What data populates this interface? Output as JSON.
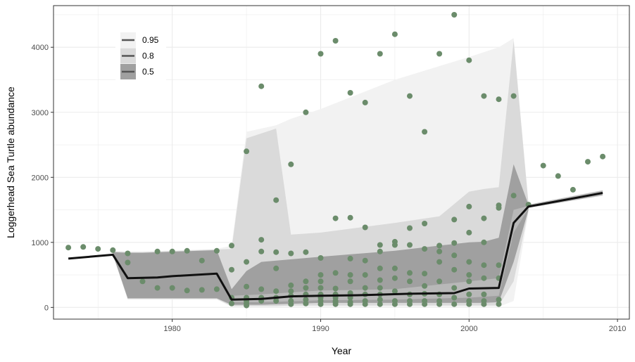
{
  "chart_data": {
    "type": "line",
    "xlabel": "Year",
    "ylabel": "Loggerhead Sea Turtle abundance",
    "xlim": [
      1972.0,
      2010.8
    ],
    "ylim": [
      -180,
      4640
    ],
    "x_ticks": [
      1980,
      1990,
      2000,
      2010
    ],
    "y_ticks": [
      0,
      1000,
      2000,
      3000,
      4000
    ],
    "grid": true,
    "legend": {
      "placement": "top-left",
      "entries": [
        {
          "label": "0.95",
          "color": "#f2f2f2"
        },
        {
          "label": "0.8",
          "color": "#dadada"
        },
        {
          "label": "0.5",
          "color": "#a0a0a0"
        }
      ]
    },
    "colors": {
      "band_95": "#f2f2f2",
      "band_80": "#dadada",
      "band_50": "#a0a0a0",
      "band_inner": "#b8b8b8",
      "median": "#111111",
      "points": "#6b8c6b",
      "grid": "#ebebeb",
      "panel_border": "#333333"
    },
    "bands": [
      {
        "name": "0.95",
        "x": [
          1976,
          1977,
          1978,
          1983,
          1984,
          1985,
          1987,
          1988,
          1990,
          1995,
          2000,
          2002,
          2003,
          2004
        ],
        "lower": [
          800,
          120,
          120,
          120,
          10,
          10,
          10,
          10,
          10,
          10,
          10,
          10,
          100,
          1460
        ],
        "upper": [
          870,
          860,
          860,
          900,
          950,
          2700,
          2800,
          2900,
          3050,
          3500,
          3850,
          4000,
          4140,
          1620
        ]
      },
      {
        "name": "0.8",
        "x": [
          1976,
          1977,
          1978,
          1983,
          1984,
          1985,
          1987,
          1988,
          1990,
          1995,
          1998,
          2000,
          2001,
          2002,
          2003,
          2004
        ],
        "lower": [
          810,
          130,
          130,
          130,
          20,
          20,
          20,
          30,
          30,
          30,
          30,
          30,
          30,
          30,
          400,
          1480
        ],
        "upper": [
          860,
          850,
          850,
          890,
          900,
          2600,
          2750,
          1120,
          1150,
          1300,
          1400,
          1780,
          1820,
          1850,
          4100,
          1600
        ]
      },
      {
        "name": "0.5",
        "x": [
          1976,
          1977,
          1978,
          1983,
          1984,
          1985,
          1986,
          1990,
          1995,
          1998,
          2000,
          2001,
          2002,
          2003,
          2004
        ],
        "lower": [
          820,
          140,
          140,
          140,
          40,
          40,
          40,
          70,
          70,
          70,
          70,
          70,
          80,
          700,
          1500
        ],
        "upper": [
          850,
          840,
          840,
          880,
          280,
          560,
          700,
          780,
          870,
          950,
          1000,
          1010,
          1070,
          2200,
          1580
        ]
      },
      {
        "name": "inner",
        "x": [
          1984,
          1985,
          1986,
          1990,
          1995,
          2000,
          2002,
          2003,
          2004
        ],
        "lower": [
          80,
          80,
          80,
          110,
          120,
          150,
          180,
          1150,
          1520
        ],
        "upper": [
          180,
          190,
          200,
          260,
          280,
          400,
          450,
          1500,
          1560
        ]
      },
      {
        "name": "forecast",
        "x": [
          2004,
          2009
        ],
        "lower": [
          1530,
          1720
        ],
        "upper": [
          1580,
          1800
        ]
      }
    ],
    "median": {
      "x": [
        1973,
        1976,
        1977,
        1979,
        1980,
        1983,
        1984,
        1986,
        1988,
        1990,
        1993,
        1996,
        1999,
        2000,
        2002,
        2003,
        2004,
        2009
      ],
      "y": [
        750,
        810,
        450,
        460,
        480,
        520,
        120,
        130,
        170,
        180,
        190,
        210,
        220,
        290,
        300,
        1300,
        1550,
        1760
      ]
    },
    "points": {
      "x": [
        1973,
        1974,
        1975,
        1976,
        1977,
        1977,
        1978,
        1979,
        1979,
        1980,
        1980,
        1981,
        1981,
        1982,
        1982,
        1983,
        1983,
        1984,
        1984,
        1984,
        1984,
        1985,
        1985,
        1985,
        1985,
        1985,
        1985,
        1985,
        1986,
        1986,
        1986,
        1986,
        1986,
        1986,
        1987,
        1987,
        1987,
        1987,
        1987,
        1987,
        1988,
        1988,
        1988,
        1988,
        1988,
        1988,
        1988,
        1989,
        1989,
        1989,
        1989,
        1989,
        1989,
        1989,
        1990,
        1990,
        1990,
        1990,
        1990,
        1990,
        1990,
        1990,
        1990,
        1991,
        1991,
        1991,
        1991,
        1991,
        1991,
        1991,
        1991,
        1991,
        1992,
        1992,
        1992,
        1992,
        1992,
        1992,
        1992,
        1992,
        1992,
        1993,
        1993,
        1993,
        1993,
        1993,
        1993,
        1993,
        1993,
        1994,
        1994,
        1994,
        1994,
        1994,
        1994,
        1994,
        1994,
        1994,
        1995,
        1995,
        1995,
        1995,
        1995,
        1995,
        1995,
        1995,
        1996,
        1996,
        1996,
        1996,
        1996,
        1996,
        1996,
        1996,
        1997,
        1997,
        1997,
        1997,
        1997,
        1997,
        1997,
        1997,
        1998,
        1998,
        1998,
        1998,
        1998,
        1998,
        1998,
        1998,
        1999,
        1999,
        1999,
        1999,
        1999,
        1999,
        1999,
        1999,
        2000,
        2000,
        2000,
        2000,
        2000,
        2000,
        2000,
        2000,
        2000,
        2001,
        2001,
        2001,
        2001,
        2001,
        2001,
        2001,
        2001,
        2002,
        2002,
        2002,
        2002,
        2002,
        2002,
        2002,
        2003,
        2003,
        2004,
        2005,
        2006,
        2007,
        2008,
        2009
      ],
      "y": [
        920,
        930,
        900,
        880,
        830,
        690,
        400,
        860,
        300,
        860,
        300,
        870,
        260,
        720,
        270,
        870,
        280,
        950,
        580,
        150,
        60,
        2400,
        700,
        320,
        150,
        100,
        60,
        30,
        3400,
        1040,
        860,
        280,
        150,
        100,
        1650,
        850,
        600,
        250,
        150,
        100,
        2200,
        830,
        340,
        250,
        180,
        100,
        50,
        3000,
        850,
        400,
        300,
        200,
        120,
        60,
        3900,
        760,
        500,
        400,
        300,
        200,
        150,
        100,
        50,
        4100,
        1370,
        530,
        290,
        200,
        150,
        100,
        80,
        50,
        3300,
        1380,
        750,
        500,
        400,
        220,
        150,
        80,
        50,
        3150,
        1230,
        720,
        500,
        300,
        200,
        100,
        50,
        3900,
        960,
        860,
        600,
        420,
        300,
        200,
        120,
        50,
        4200,
        1010,
        960,
        600,
        450,
        250,
        100,
        50,
        3250,
        1220,
        960,
        530,
        400,
        200,
        100,
        50,
        2700,
        1290,
        900,
        520,
        330,
        210,
        100,
        50,
        3900,
        950,
        860,
        700,
        400,
        200,
        100,
        50,
        4500,
        1350,
        990,
        800,
        580,
        300,
        150,
        50,
        3800,
        1550,
        1150,
        700,
        500,
        400,
        200,
        100,
        50,
        3250,
        1370,
        1000,
        650,
        450,
        200,
        100,
        50,
        3200,
        1570,
        1530,
        650,
        450,
        120,
        50,
        3250,
        1720,
        1580,
        2180,
        2020,
        1810,
        2240,
        2320
      ]
    }
  }
}
